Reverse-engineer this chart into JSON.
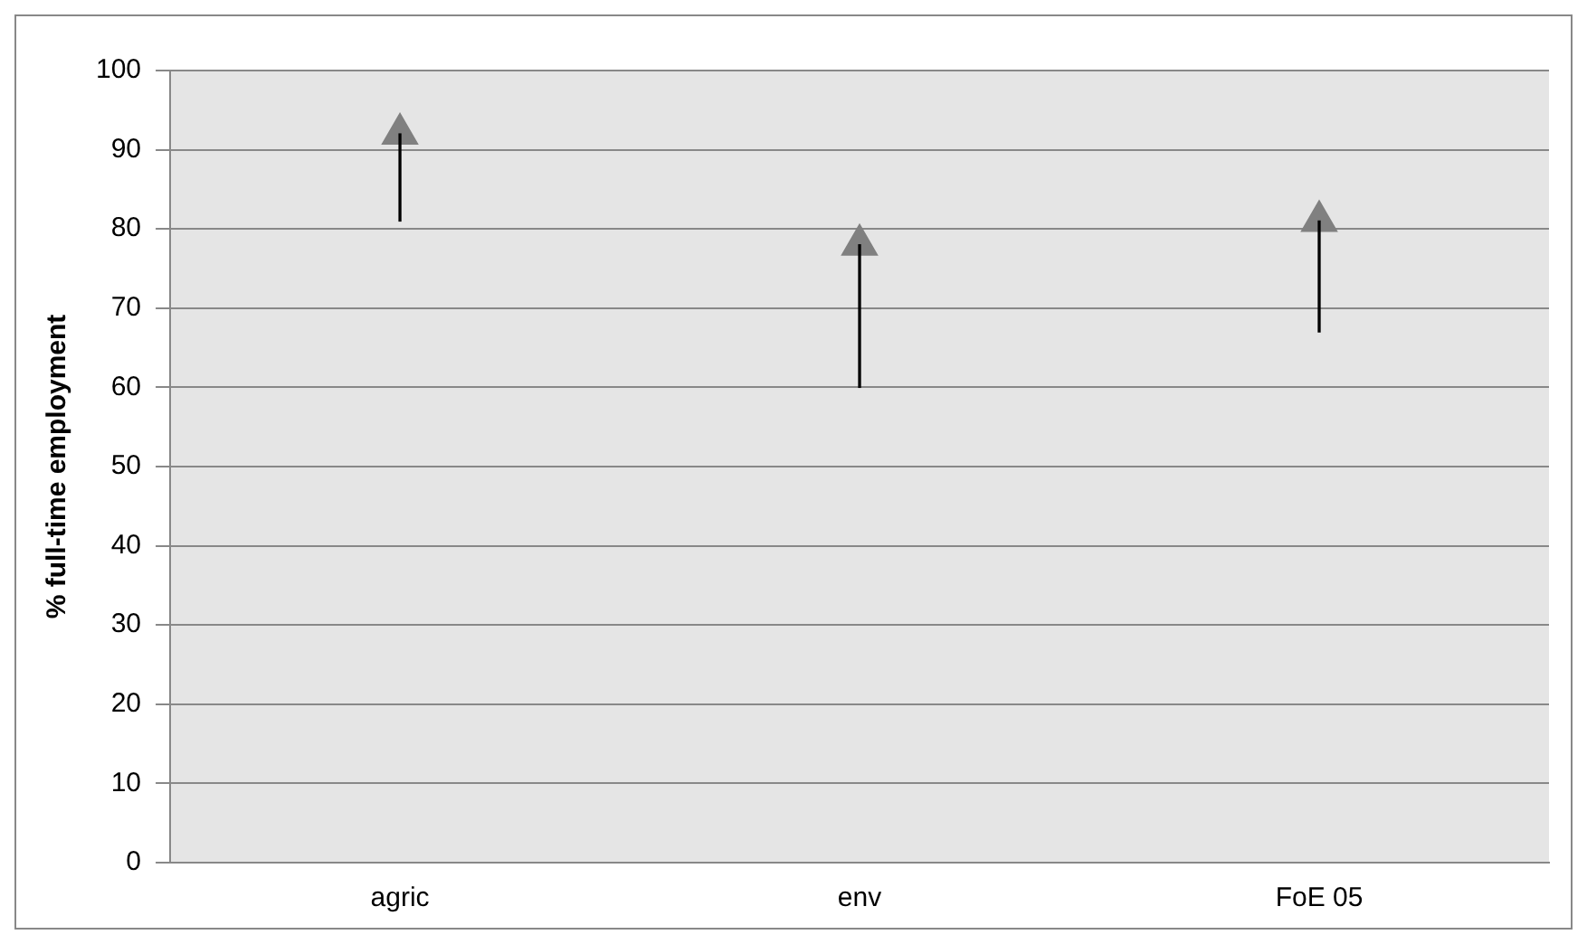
{
  "chart_data": {
    "type": "bar",
    "ylabel": "% full-time employment",
    "categories": [
      "agric",
      "env",
      "FoE 05"
    ],
    "series": [
      {
        "color": "#000000",
        "values": [
          11,
          18,
          14
        ],
        "base": [
          81,
          60,
          67
        ]
      },
      {
        "type": "scatter",
        "color": "#808080",
        "x": [
          "agric",
          "env",
          "FoE 05"
        ],
        "values": [
          92,
          78,
          81
        ]
      }
    ],
    "marker": "triangle",
    "ylim": [
      0,
      100
    ],
    "yticks": [
      0,
      10,
      20,
      30,
      40,
      50,
      60,
      70,
      80,
      90,
      100
    ],
    "grid": "y"
  }
}
